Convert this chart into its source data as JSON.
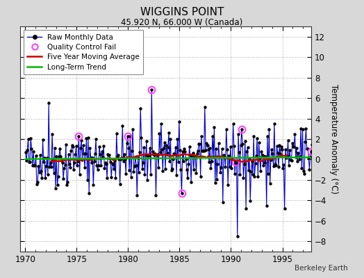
{
  "title": "WIGGINS POINT",
  "subtitle": "45.920 N, 66.000 W (Canada)",
  "ylabel": "Temperature Anomaly (°C)",
  "attribution": "Berkeley Earth",
  "ylim": [
    -9,
    13
  ],
  "yticks": [
    -8,
    -6,
    -4,
    -2,
    0,
    2,
    4,
    6,
    8,
    10,
    12
  ],
  "xlim": [
    1969.5,
    1997.8
  ],
  "xticks": [
    1970,
    1975,
    1980,
    1985,
    1990,
    1995
  ],
  "bg_color": "#d8d8d8",
  "plot_bg_color": "#ffffff",
  "raw_line_color": "#0000cc",
  "raw_marker_color": "#000000",
  "moving_avg_color": "#cc0000",
  "trend_color": "#00bb00",
  "qc_fail_color": "#ff44ff",
  "seed": 42,
  "trend_slope": 0.006,
  "trend_intercept": 0.12,
  "legend_items": [
    "Raw Monthly Data",
    "Quality Control Fail",
    "Five Year Moving Average",
    "Long-Term Trend"
  ]
}
